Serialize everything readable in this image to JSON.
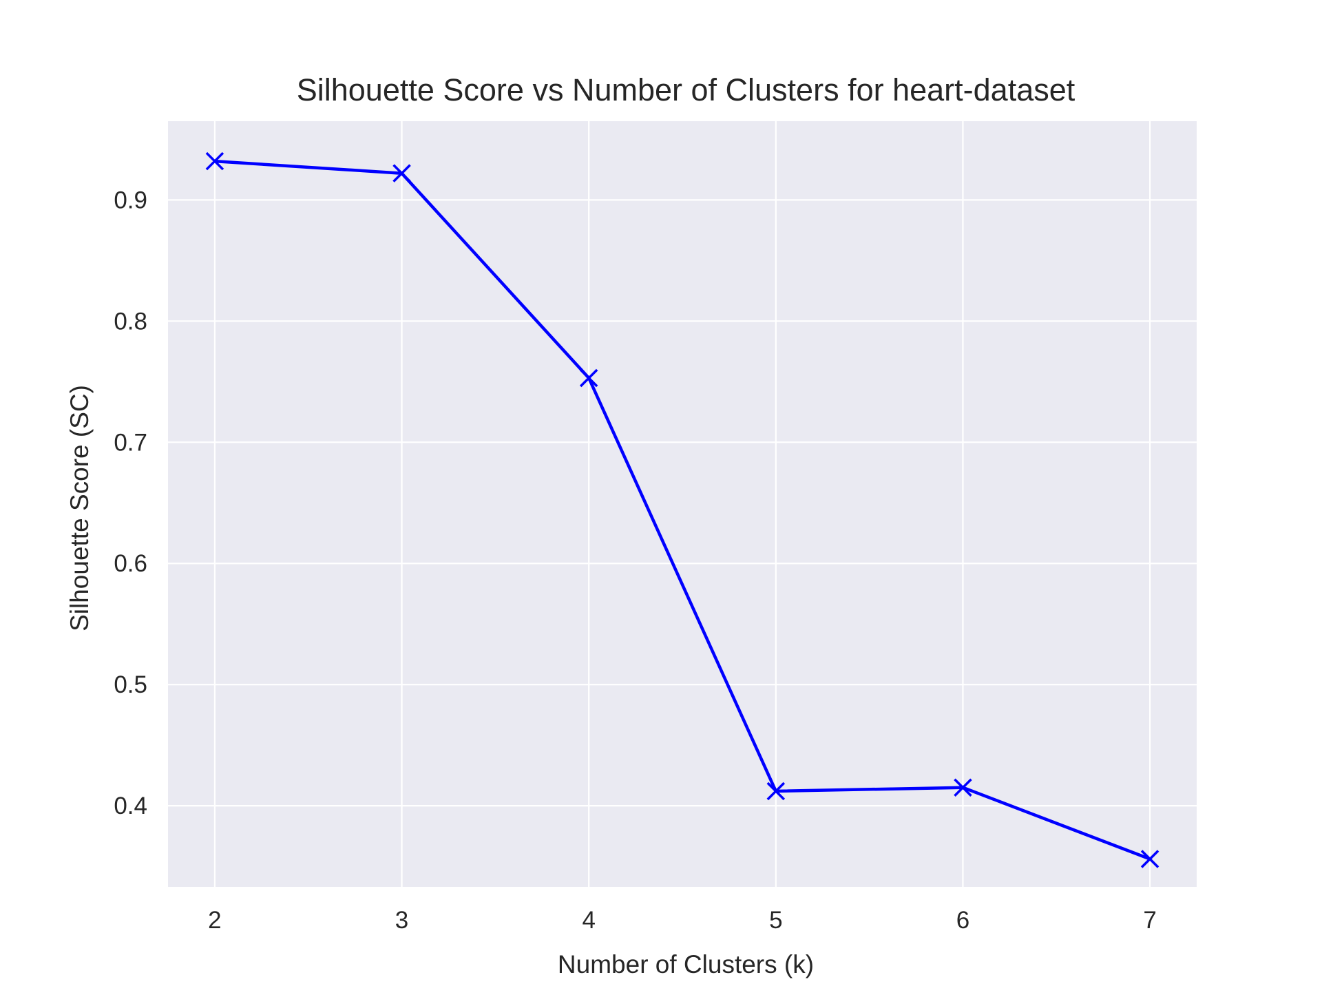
{
  "colors": {
    "plot_background": "#eaeaf2",
    "grid": "#ffffff",
    "line": "#0000ff",
    "text": "#262626"
  },
  "chart_data": {
    "type": "line",
    "title": "Silhouette Score vs Number of Clusters for heart-dataset",
    "xlabel": "Number of Clusters (k)",
    "ylabel": "Silhouette Score (SC)",
    "xlim": [
      1.75,
      7.25
    ],
    "ylim": [
      0.333,
      0.965
    ],
    "xticks": [
      2,
      3,
      4,
      5,
      6,
      7
    ],
    "yticks": [
      0.4,
      0.5,
      0.6,
      0.7,
      0.8,
      0.9
    ],
    "xtick_labels": [
      "2",
      "3",
      "4",
      "5",
      "6",
      "7"
    ],
    "ytick_labels": [
      "0.4",
      "0.5",
      "0.6",
      "0.7",
      "0.8",
      "0.9"
    ],
    "grid": true,
    "marker": "x",
    "series": [
      {
        "x": [
          2,
          3,
          4,
          5,
          6,
          7
        ],
        "values": [
          0.932,
          0.922,
          0.753,
          0.412,
          0.415,
          0.356
        ],
        "color": "#0000ff"
      }
    ]
  }
}
